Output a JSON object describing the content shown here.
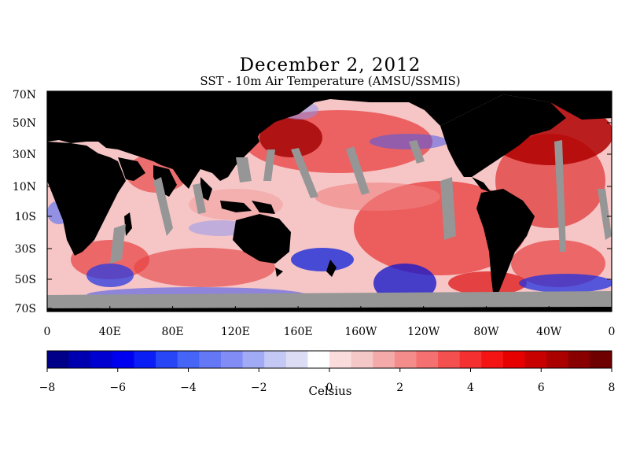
{
  "title": "December 2, 2012",
  "subtitle": "SST - 10m Air Temperature (AMSU/SSMIS)",
  "lat_labels": [
    "70N",
    "50N",
    "30N",
    "10N",
    "10S",
    "30S",
    "50S",
    "70S"
  ],
  "lon_labels": [
    "0",
    "40E",
    "80E",
    "120E",
    "160E",
    "160W",
    "120W",
    "80W",
    "40W",
    "0"
  ],
  "colorbar": {
    "ticks": [
      "−8",
      "−6",
      "−4",
      "−2",
      "0",
      "2",
      "4",
      "6",
      "8"
    ],
    "label": "Celsius",
    "range": [
      -8,
      8
    ],
    "colors": [
      "#000088",
      "#0000b0",
      "#0000d0",
      "#0000f0",
      "#0a1ef5",
      "#2846f5",
      "#4664f5",
      "#6478f5",
      "#828cf5",
      "#a0aaf5",
      "#c3c8f5",
      "#dcdcf5",
      "#ffffff",
      "#fadcdc",
      "#f5c8c8",
      "#f5aaaa",
      "#f58c8c",
      "#f57070",
      "#f55050",
      "#f53030",
      "#f51414",
      "#e60000",
      "#c80000",
      "#aa0000",
      "#880000",
      "#6e0000"
    ]
  },
  "colors": {
    "land": "#000000",
    "missing": "#969696",
    "background": "#ffffff"
  }
}
